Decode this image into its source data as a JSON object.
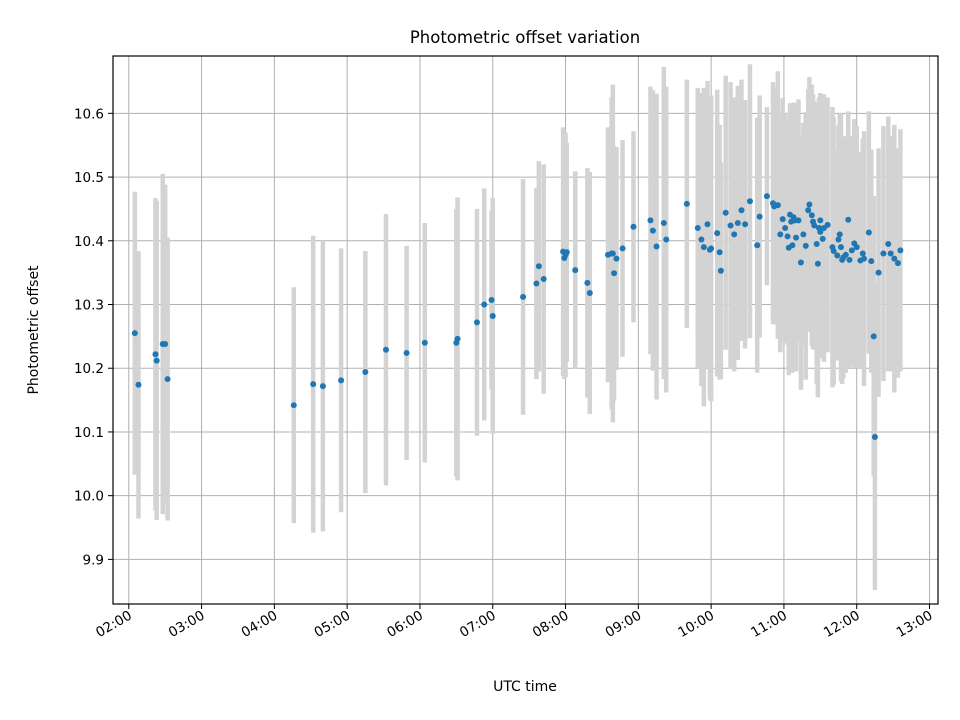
{
  "chart_data": {
    "type": "scatter",
    "title": "Photometric offset variation",
    "xlabel": "UTC time",
    "ylabel": "Photometric offset",
    "xlim": [
      "01:47",
      "13:07"
    ],
    "ylim": [
      9.83,
      10.69
    ],
    "x_ticks": [
      "02:00",
      "03:00",
      "04:00",
      "05:00",
      "06:00",
      "07:00",
      "08:00",
      "09:00",
      "10:00",
      "11:00",
      "12:00",
      "13:00"
    ],
    "y_ticks": [
      9.9,
      10.0,
      10.1,
      10.2,
      10.3,
      10.4,
      10.5,
      10.6
    ],
    "y_tick_labels": [
      "9.9",
      "10.0",
      "10.1",
      "10.2",
      "10.3",
      "10.4",
      "10.5",
      "10.6"
    ],
    "grid": true,
    "colors": {
      "points": "#1f77b4",
      "error_bars": "#d3d3d3",
      "grid": "#b0b0b0"
    },
    "series": [
      {
        "x": [
          "02:05",
          "02:08",
          "02:22",
          "02:23",
          "02:28",
          "02:30",
          "02:32",
          "04:16",
          "04:32",
          "04:40",
          "04:55",
          "05:15",
          "05:32",
          "05:49",
          "06:04",
          "06:30",
          "06:31",
          "06:47",
          "06:53",
          "06:59",
          "07:00",
          "07:25",
          "07:36",
          "07:38",
          "07:42",
          "07:58",
          "07:59",
          "08:00",
          "08:01",
          "08:08",
          "08:18",
          "08:20",
          "08:35",
          "08:38",
          "08:39",
          "08:40",
          "08:42",
          "08:47",
          "08:56",
          "09:10",
          "09:12",
          "09:15",
          "09:21",
          "09:23",
          "09:40",
          "09:49",
          "09:52",
          "09:54",
          "09:57",
          "09:59",
          "10:00",
          "10:05",
          "10:07",
          "10:08",
          "10:12",
          "10:16",
          "10:19",
          "10:22",
          "10:25",
          "10:28",
          "10:32",
          "10:38",
          "10:40",
          "10:46",
          "10:51",
          "10:52",
          "10:55",
          "10:57",
          "10:59",
          "11:01",
          "11:03",
          "11:04",
          "11:05",
          "11:06",
          "11:07",
          "11:08",
          "11:09",
          "11:10",
          "11:12",
          "11:14",
          "11:16",
          "11:18",
          "11:20",
          "11:21",
          "11:23",
          "11:24",
          "11:25",
          "11:27",
          "11:28",
          "11:29",
          "11:29",
          "11:30",
          "11:30",
          "11:32",
          "11:33",
          "11:36",
          "11:40",
          "11:41",
          "11:44",
          "11:45",
          "11:46",
          "11:47",
          "11:48",
          "11:49",
          "11:51",
          "11:53",
          "11:54",
          "11:56",
          "11:58",
          "12:00",
          "12:03",
          "12:05",
          "12:06",
          "12:10",
          "12:12",
          "12:14",
          "12:15",
          "12:18",
          "12:22",
          "12:26",
          "12:28",
          "12:31",
          "12:34",
          "12:36"
        ],
        "y": [
          10.255,
          10.174,
          10.222,
          10.212,
          10.238,
          10.238,
          10.183,
          10.142,
          10.175,
          10.172,
          10.181,
          10.194,
          10.229,
          10.224,
          10.24,
          10.24,
          10.246,
          10.272,
          10.3,
          10.307,
          10.282,
          10.312,
          10.333,
          10.36,
          10.34,
          10.383,
          10.373,
          10.378,
          10.382,
          10.354,
          10.334,
          10.318,
          10.378,
          10.38,
          10.38,
          10.349,
          10.372,
          10.388,
          10.422,
          10.432,
          10.416,
          10.391,
          10.428,
          10.402,
          10.458,
          10.42,
          10.402,
          10.39,
          10.426,
          10.386,
          10.388,
          10.412,
          10.382,
          10.353,
          10.444,
          10.424,
          10.41,
          10.428,
          10.448,
          10.426,
          10.462,
          10.393,
          10.438,
          10.47,
          10.459,
          10.454,
          10.456,
          10.41,
          10.434,
          10.42,
          10.407,
          10.389,
          10.441,
          10.43,
          10.393,
          10.437,
          10.432,
          10.405,
          10.432,
          10.366,
          10.41,
          10.392,
          10.448,
          10.457,
          10.44,
          10.43,
          10.424,
          10.395,
          10.364,
          10.42,
          10.42,
          10.414,
          10.432,
          10.403,
          10.42,
          10.425,
          10.39,
          10.384,
          10.377,
          10.402,
          10.41,
          10.39,
          10.37,
          10.374,
          10.378,
          10.433,
          10.37,
          10.385,
          10.396,
          10.39,
          10.369,
          10.38,
          10.372,
          10.413,
          10.368,
          10.25,
          10.092,
          10.35,
          10.38,
          10.395,
          10.38,
          10.372,
          10.365,
          10.385
        ],
        "err": [
          0.222,
          0.21,
          0.245,
          0.25,
          0.267,
          0.25,
          0.222,
          0.185,
          0.233,
          0.228,
          0.207,
          0.19,
          0.213,
          0.168,
          0.188,
          0.21,
          0.222,
          0.178,
          0.182,
          0.14,
          0.185,
          0.185,
          0.15,
          0.165,
          0.18,
          0.195,
          0.19,
          0.192,
          0.172,
          0.155,
          0.18,
          0.19,
          0.2,
          0.245,
          0.265,
          0.2,
          0.175,
          0.17,
          0.15,
          0.21,
          0.22,
          0.24,
          0.245,
          0.24,
          0.195,
          0.22,
          0.23,
          0.25,
          0.225,
          0.235,
          0.24,
          0.225,
          0.2,
          0.17,
          0.215,
          0.225,
          0.215,
          0.215,
          0.205,
          0.195,
          0.215,
          0.2,
          0.19,
          0.14,
          0.19,
          0.185,
          0.21,
          0.185,
          0.19,
          0.18,
          0.17,
          0.2,
          0.175,
          0.17,
          0.2,
          0.18,
          0.18,
          0.21,
          0.19,
          0.2,
          0.175,
          0.21,
          0.19,
          0.2,
          0.205,
          0.2,
          0.195,
          0.22,
          0.21,
          0.205,
          0.2,
          0.195,
          0.2,
          0.185,
          0.21,
          0.2,
          0.22,
          0.21,
          0.165,
          0.18,
          0.19,
          0.21,
          0.195,
          0.19,
          0.185,
          0.17,
          0.17,
          0.18,
          0.195,
          0.19,
          0.17,
          0.18,
          0.2,
          0.19,
          0.175,
          0.22,
          0.24,
          0.195,
          0.2,
          0.2,
          0.185,
          0.21,
          0.18,
          0.19
        ]
      }
    ]
  }
}
